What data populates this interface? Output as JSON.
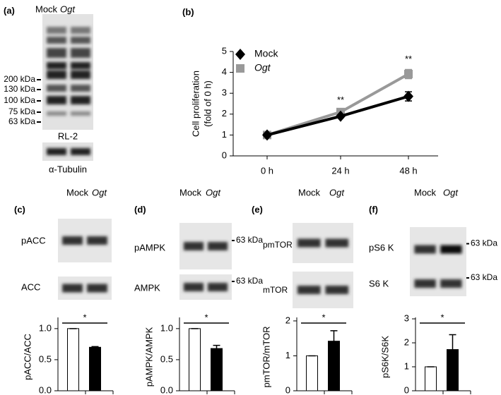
{
  "panel_a": {
    "label": "(a)",
    "lanes": [
      "Mock",
      "Ogt"
    ],
    "markers": [
      "200 kDa",
      "130 kDa",
      "100 kDa",
      "75 kDa",
      "63 kDa"
    ],
    "blot_label": "RL-2",
    "loading": "α-Tubulin"
  },
  "blots": [
    {
      "label": "(c)",
      "lanes": [
        "Mock",
        "Ogt"
      ],
      "rows": [
        "pACC",
        "ACC"
      ]
    },
    {
      "label": "(d)",
      "lanes": [
        "Mock",
        "Ogt"
      ],
      "rows": [
        "pAMPK",
        "AMPK"
      ],
      "markers": [
        "63 kDa",
        "63 kDa"
      ]
    },
    {
      "label": "(e)",
      "lanes": [
        "Mock",
        "Ogt"
      ],
      "rows": [
        "pmTOR",
        "mTOR"
      ]
    },
    {
      "label": "(f)",
      "lanes": [
        "Mock",
        "Ogt"
      ],
      "rows": [
        "pS6 K",
        "S6 K"
      ],
      "markers": [
        "63 kDa",
        "63 kDa"
      ]
    }
  ],
  "chart_data": [
    {
      "type": "line",
      "label": "(b)",
      "ylabel": [
        "Cell proliferation",
        "(fold of 0 h)"
      ],
      "categories": [
        "0 h",
        "24 h",
        "48 h"
      ],
      "series": [
        {
          "name": "Mock",
          "color": "#000000",
          "marker": "diamond",
          "values": [
            1,
            1.9,
            2.85
          ],
          "errors": [
            0.08,
            0.06,
            0.22
          ]
        },
        {
          "name": "Ogt",
          "color": "#999999",
          "marker": "square",
          "values": [
            1,
            2.1,
            3.92
          ],
          "errors": [
            0.08,
            0.08,
            0.22
          ]
        }
      ],
      "ylim": [
        0,
        5
      ],
      "yticks": [
        0,
        1,
        2,
        3,
        4,
        5
      ],
      "annotations": [
        "**",
        "**"
      ],
      "legend": "upper left"
    },
    {
      "type": "bar",
      "ylabel": "pACC/ACC",
      "categories": [
        null,
        null
      ],
      "values": [
        1,
        0.7
      ],
      "errors": [
        0,
        0.01
      ],
      "colors": [
        "#ffffff",
        "#000000"
      ],
      "ylim": [
        0,
        1.18
      ],
      "yticks": [
        {
          "value": 0,
          "label": "0.0"
        },
        {
          "value": 0.5,
          "label": "0.5"
        },
        {
          "value": 1,
          "label": "1.0"
        }
      ],
      "annotation": "*"
    },
    {
      "type": "bar",
      "ylabel": "pAMPK/AMPK",
      "categories": [
        null,
        null
      ],
      "values": [
        1,
        0.68
      ],
      "errors": [
        0,
        0.05
      ],
      "colors": [
        "#ffffff",
        "#000000"
      ],
      "ylim": [
        0,
        1.18
      ],
      "yticks": [
        {
          "value": 0,
          "label": "0.0"
        },
        {
          "value": 0.5,
          "label": "0.5"
        },
        {
          "value": 1,
          "label": "1.0"
        }
      ],
      "annotation": "*"
    },
    {
      "type": "bar",
      "ylabel": "pmTOR/mTOR",
      "categories": [
        null,
        null
      ],
      "values": [
        1,
        1.42
      ],
      "errors": [
        0,
        0.3
      ],
      "colors": [
        "#ffffff",
        "#000000"
      ],
      "ylim": [
        0,
        2.1
      ],
      "yticks": [
        0,
        1,
        2
      ],
      "annotation": "*"
    },
    {
      "type": "bar",
      "ylabel": "pS6K/S6K",
      "categories": [
        null,
        null
      ],
      "values": [
        1,
        1.72
      ],
      "errors": [
        0,
        0.62
      ],
      "colors": [
        "#ffffff",
        "#000000"
      ],
      "ylim": [
        0,
        3.06
      ],
      "yticks": [
        0,
        1,
        2,
        3
      ],
      "annotation": "*"
    }
  ]
}
